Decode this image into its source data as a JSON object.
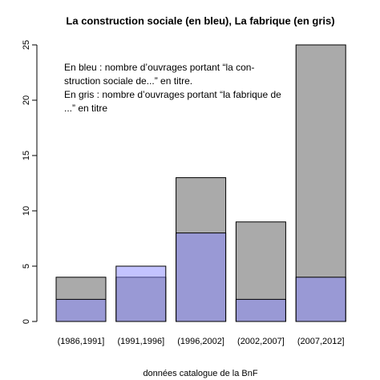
{
  "chart_data": {
    "type": "bar",
    "overlap": true,
    "title": "La construction sociale (en bleu), La fabrique (en gris)",
    "annotation": [
      "En bleu : nombre d’ouvrages portant “la con-",
      "struction sociale de...” en titre.",
      "En gris : nombre d’ouvrages portant “la fabrique de",
      "...” en titre"
    ],
    "caption": "données catalogue de la BnF",
    "categories": [
      "(1986,1991]",
      "(1991,1996]",
      "(1996,2002]",
      "(2002,2007]",
      "(2007,2012]"
    ],
    "series": [
      {
        "color": "#aaaaaa",
        "opacity": 1,
        "values": [
          4,
          4,
          13,
          9,
          25
        ]
      },
      {
        "color": "#8888ff",
        "opacity": 0.5,
        "values": [
          2,
          5,
          8,
          2,
          4
        ]
      }
    ],
    "ylim": [
      0,
      25
    ],
    "yticks": [
      0,
      5,
      10,
      15,
      20,
      25
    ],
    "grid": false
  }
}
